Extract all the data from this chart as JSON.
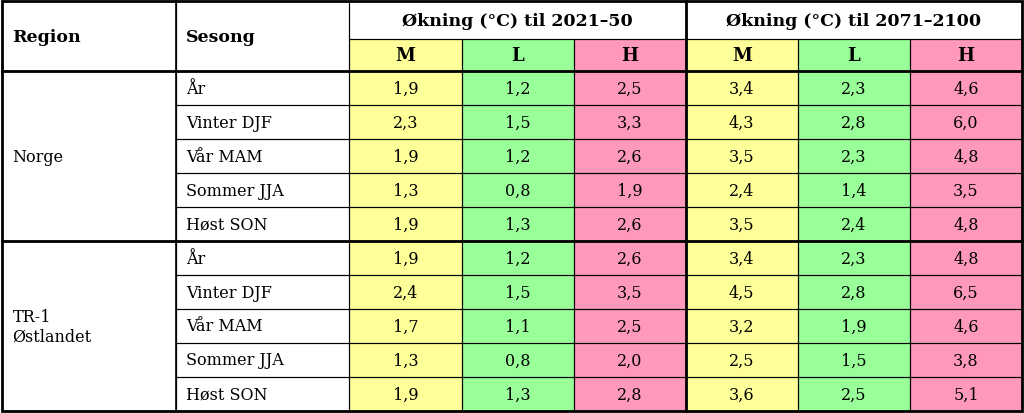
{
  "regions": [
    {
      "name": "Norge",
      "rows": [
        [
          "År",
          "1,9",
          "1,2",
          "2,5",
          "3,4",
          "2,3",
          "4,6"
        ],
        [
          "Vinter DJF",
          "2,3",
          "1,5",
          "3,3",
          "4,3",
          "2,8",
          "6,0"
        ],
        [
          "Vår MAM",
          "1,9",
          "1,2",
          "2,6",
          "3,5",
          "2,3",
          "4,8"
        ],
        [
          "Sommer JJA",
          "1,3",
          "0,8",
          "1,9",
          "2,4",
          "1,4",
          "3,5"
        ],
        [
          "Høst SON",
          "1,9",
          "1,3",
          "2,6",
          "3,5",
          "2,4",
          "4,8"
        ]
      ]
    },
    {
      "name": "TR-1\nØstlandet",
      "rows": [
        [
          "År",
          "1,9",
          "1,2",
          "2,6",
          "3,4",
          "2,3",
          "4,8"
        ],
        [
          "Vinter DJF",
          "2,4",
          "1,5",
          "3,5",
          "4,5",
          "2,8",
          "6,5"
        ],
        [
          "Vår MAM",
          "1,7",
          "1,1",
          "2,5",
          "3,2",
          "1,9",
          "4,6"
        ],
        [
          "Sommer JJA",
          "1,3",
          "0,8",
          "2,0",
          "2,5",
          "1,5",
          "3,8"
        ],
        [
          "Høst SON",
          "1,9",
          "1,3",
          "2,8",
          "3,6",
          "2,5",
          "5,1"
        ]
      ]
    }
  ],
  "group_header1": "Økning (°C) til 2021–50",
  "group_header2": "Økning (°C) til 2071–2100",
  "col_header1": "Region",
  "col_header2": "Sesong",
  "subheaders": [
    "M",
    "L",
    "H",
    "M",
    "L",
    "H"
  ],
  "col_colors": [
    "#ffff99",
    "#99ff99",
    "#ff99bb",
    "#ffff99",
    "#99ff99",
    "#ff99bb"
  ],
  "white": "#ffffff",
  "border_color": "#000000",
  "text_color": "#1a1a2e",
  "font_size_data": 11.5,
  "font_size_header": 12.5,
  "font_size_subheader": 13
}
